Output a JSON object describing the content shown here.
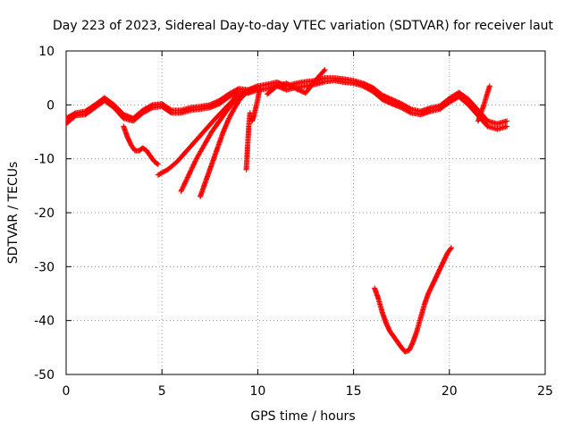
{
  "chart_data": {
    "type": "scatter",
    "title": "Day 223 of 2023, Sidereal Day-to-day VTEC variation (SDTVAR) for receiver laut",
    "xlabel": "GPS time / hours",
    "ylabel": "SDTVAR / TECUs",
    "xlim": [
      0,
      25
    ],
    "ylim": [
      -50,
      10
    ],
    "xticks": [
      "0",
      "5",
      "10",
      "15",
      "20",
      "25"
    ],
    "yticks": [
      "10",
      "0",
      "-10",
      "-20",
      "-30",
      "-40",
      "-50"
    ],
    "grid": true,
    "marker": "plus",
    "color": "#ff0000",
    "series": [
      {
        "name": "main-band-a",
        "x": [
          0,
          0.5,
          1,
          1.5,
          2,
          2.5,
          3,
          3.5,
          4,
          4.5,
          5,
          5.5,
          6,
          6.5,
          7,
          7.5,
          8,
          8.5,
          9,
          9.5,
          10,
          10.5,
          11,
          11.5,
          12,
          12.5,
          13,
          13.5,
          14,
          14.5,
          15,
          15.5,
          16,
          16.5,
          17,
          17.5,
          18,
          18.5,
          19,
          19.5,
          20,
          20.5,
          21,
          21.5,
          22,
          22.5,
          23
        ],
        "y": [
          -3.5,
          -2,
          -1.8,
          -0.5,
          0.8,
          -0.5,
          -2.5,
          -3,
          -1.5,
          -0.5,
          -0.3,
          -1.5,
          -1.5,
          -1,
          -0.8,
          -0.5,
          0.2,
          1.5,
          2.5,
          2.2,
          2.8,
          3,
          3.5,
          2.8,
          3.2,
          3.5,
          3.8,
          4.3,
          4.5,
          4.2,
          4,
          3.5,
          2.5,
          1,
          0.2,
          -0.5,
          -1.5,
          -1.8,
          -1.2,
          -0.8,
          0.5,
          1.5,
          0,
          -2,
          -4,
          -4.5,
          -4
        ]
      },
      {
        "name": "main-band-b",
        "x": [
          0,
          0.5,
          1,
          1.5,
          2,
          2.5,
          3,
          3.5,
          4,
          4.5,
          5,
          5.5,
          6,
          6.5,
          7,
          7.5,
          8,
          8.5,
          9,
          9.5,
          10,
          10.5,
          11,
          11.5,
          12,
          12.5,
          13,
          13.5,
          14,
          14.5,
          15,
          15.5,
          16,
          16.5,
          17,
          17.5,
          18,
          18.5,
          19,
          19.5,
          20,
          20.5,
          21,
          21.5,
          22,
          22.5,
          23
        ],
        "y": [
          -2.5,
          -1.5,
          -1.2,
          0,
          1.3,
          0,
          -1.8,
          -2.5,
          -1,
          0,
          0.2,
          -1,
          -1,
          -0.5,
          -0.3,
          0,
          0.8,
          2,
          3,
          2.8,
          3.5,
          3.8,
          4.2,
          3.5,
          4,
          4.3,
          4.5,
          5,
          5,
          4.8,
          4.5,
          4,
          3.2,
          1.8,
          1,
          0.2,
          -0.8,
          -1.2,
          -0.6,
          -0.2,
          1.2,
          2.3,
          1,
          -1,
          -3,
          -3.5,
          -3
        ]
      },
      {
        "name": "dip-3-5h",
        "x": [
          3,
          3.2,
          3.4,
          3.6,
          3.8,
          4,
          4.2,
          4.4,
          4.6,
          4.8
        ],
        "y": [
          -4,
          -6,
          -7.5,
          -8.5,
          -8.5,
          -8,
          -8.5,
          -9.5,
          -10.5,
          -11
        ]
      },
      {
        "name": "drop-5h",
        "x": [
          4.8,
          5.3,
          5.8,
          6.3,
          6.8,
          7.3,
          7.8,
          8.2,
          8.6,
          9
        ],
        "y": [
          -13,
          -12,
          -10.5,
          -8.5,
          -6.5,
          -4.5,
          -2.5,
          -1,
          0.5,
          2
        ]
      },
      {
        "name": "drop-6h",
        "x": [
          6,
          6.4,
          6.8,
          7.2,
          7.6,
          8,
          8.4,
          8.8,
          9.2,
          9.6
        ],
        "y": [
          -16,
          -13,
          -10,
          -7.5,
          -5,
          -3,
          -1,
          0.8,
          2,
          2.8
        ]
      },
      {
        "name": "drop-7h",
        "x": [
          7,
          7.3,
          7.6,
          7.9,
          8.2,
          8.5,
          8.8,
          9.1,
          9.4,
          9.8
        ],
        "y": [
          -17,
          -14,
          -11,
          -8,
          -5,
          -2.5,
          -0.5,
          1.2,
          2.2,
          3
        ]
      },
      {
        "name": "spike-9-5h",
        "x": [
          9.4,
          9.45,
          9.5,
          9.55,
          9.6
        ],
        "y": [
          -12,
          -9,
          -6,
          -3,
          -1.5
        ]
      },
      {
        "name": "spike-10h",
        "x": [
          9.7,
          9.8,
          9.9,
          10,
          10.1
        ],
        "y": [
          -3,
          -2,
          -0.5,
          1,
          3
        ]
      },
      {
        "name": "evening-band",
        "x": [
          10.5,
          11,
          11.5,
          12,
          12.5,
          13,
          13.5
        ],
        "y": [
          2,
          3.5,
          4,
          3,
          2.2,
          4.5,
          6.5
        ]
      },
      {
        "name": "u-curve",
        "x": [
          16.1,
          16.3,
          16.5,
          16.7,
          16.9,
          17.1,
          17.3,
          17.5,
          17.7,
          17.9,
          18.1,
          18.3,
          18.5,
          18.7,
          18.9,
          19.1,
          19.3,
          19.5,
          19.7,
          19.9,
          20.1
        ],
        "y": [
          -34,
          -36,
          -38.5,
          -40.5,
          -42,
          -43,
          -44,
          -45,
          -45.8,
          -45.5,
          -44,
          -42,
          -39.5,
          -37,
          -35,
          -33.5,
          -32,
          -30.5,
          -29,
          -27.5,
          -26.5
        ]
      },
      {
        "name": "late-spike",
        "x": [
          21.5,
          21.8,
          22.1
        ],
        "y": [
          -3,
          0,
          3.5
        ]
      }
    ]
  }
}
